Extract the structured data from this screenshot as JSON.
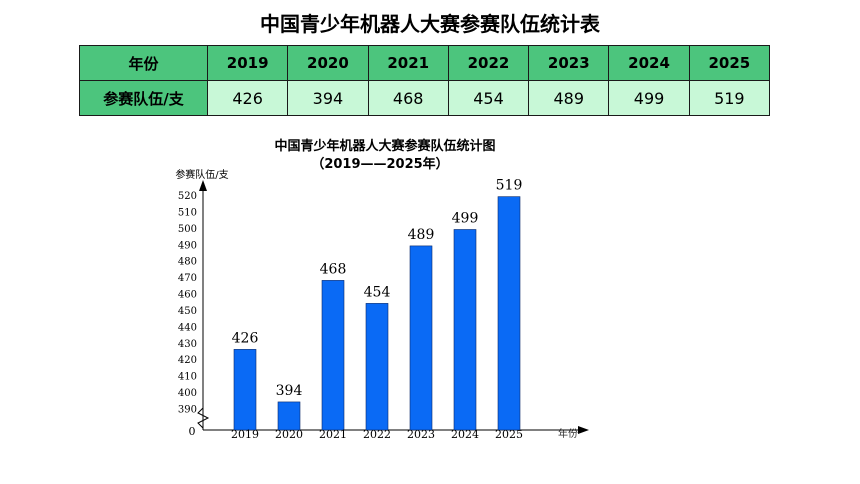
{
  "page_title": "中国青少年机器人大赛参赛队伍统计表",
  "table": {
    "header_label": "年份",
    "row_label": "参赛队伍/支",
    "years": [
      "2019",
      "2020",
      "2021",
      "2022",
      "2023",
      "2024",
      "2025"
    ],
    "values": [
      "426",
      "394",
      "468",
      "454",
      "489",
      "499",
      "519"
    ]
  },
  "chart_data": {
    "type": "bar",
    "title": "中国青少年机器人大赛参赛队伍统计图",
    "subtitle": "（2019——2025年）",
    "ylabel": "参赛队伍/支",
    "xlabel": "年份",
    "categories": [
      "2019",
      "2020",
      "2021",
      "2022",
      "2023",
      "2024",
      "2025"
    ],
    "values": [
      426,
      394,
      468,
      454,
      489,
      499,
      519
    ],
    "ylim": [
      390,
      520
    ],
    "yticks": [
      "390",
      "400",
      "410",
      "420",
      "430",
      "440",
      "450",
      "460",
      "470",
      "480",
      "490",
      "500",
      "510",
      "520"
    ],
    "zero_label": "0",
    "axis_break": true,
    "bar_color": "#0a6af5"
  }
}
